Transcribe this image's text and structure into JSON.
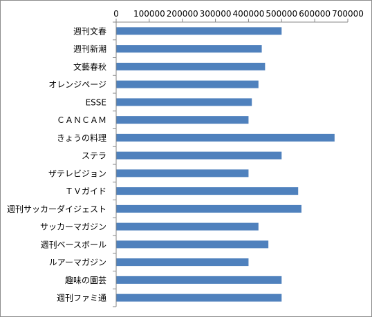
{
  "chart_data": {
    "type": "bar",
    "orientation": "horizontal",
    "title": "",
    "xlabel": "",
    "ylabel": "",
    "xlim": [
      0,
      700000
    ],
    "x_ticks": [
      0,
      100000,
      200000,
      300000,
      400000,
      500000,
      600000,
      700000
    ],
    "x_tick_labels": [
      "0",
      "100000",
      "200000",
      "300000",
      "400000",
      "500000",
      "600000",
      "700000"
    ],
    "x_axis_position": "top",
    "grid": false,
    "legend": "none",
    "bar_color": "#4f81bd",
    "categories": [
      "週刊文春",
      "週刊新潮",
      "文藝春秋",
      "オレンジページ",
      "ESSE",
      "ＣＡＮＣＡＭ",
      "きょうの料理",
      "ステラ",
      "ザテレビジョン",
      "ＴＶガイド",
      "週刊サッカーダイジェスト",
      "サッカーマガジン",
      "週刊ベースボール",
      "ルアーマガジン",
      "趣味の園芸",
      "週刊ファミ通"
    ],
    "values": [
      500000,
      440000,
      450000,
      430000,
      410000,
      400000,
      660000,
      500000,
      400000,
      550000,
      560000,
      430000,
      460000,
      400000,
      500000,
      500000
    ]
  }
}
